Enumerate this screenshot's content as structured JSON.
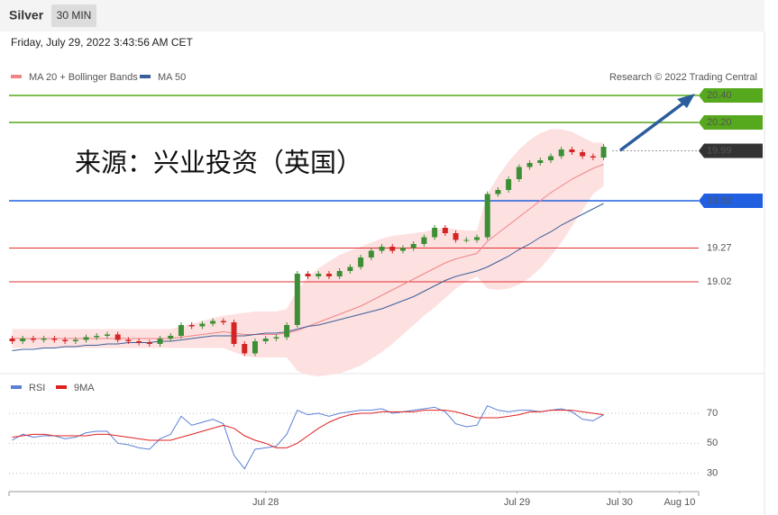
{
  "header": {
    "title": "Silver",
    "timeframe": "30 MIN",
    "timestamp": "Friday, July 29, 2022 3:43:56 AM CET"
  },
  "chart_data": [
    {
      "type": "candlestick",
      "source": "Research © 2022 Trading Central",
      "annotation": "来源：兴业投资（英国）",
      "up_color": "#3d8f35",
      "down_color": "#d42424",
      "xlim": [
        -0.3,
        65
      ],
      "ylim": [
        18.34,
        20.64
      ],
      "open": [
        18.6,
        18.58,
        18.6,
        18.59,
        18.6,
        18.59,
        18.58,
        18.59,
        18.61,
        18.62,
        18.63,
        18.59,
        18.58,
        18.57,
        18.56,
        18.6,
        18.62,
        18.7,
        18.69,
        18.71,
        18.73,
        18.72,
        18.56,
        18.49,
        18.58,
        18.6,
        18.61,
        18.7,
        19.08,
        19.06,
        19.08,
        19.06,
        19.1,
        19.13,
        19.2,
        19.25,
        19.28,
        19.25,
        19.27,
        19.3,
        19.35,
        19.42,
        19.38,
        19.33,
        19.33,
        19.35,
        19.67,
        19.7,
        19.78,
        19.87,
        19.9,
        19.92,
        19.95,
        20.0,
        19.98,
        19.95,
        19.94
      ],
      "high": [
        18.62,
        18.62,
        18.62,
        18.62,
        18.62,
        18.61,
        18.61,
        18.63,
        18.64,
        18.65,
        18.65,
        18.61,
        18.6,
        18.59,
        18.62,
        18.64,
        18.72,
        18.72,
        18.73,
        18.75,
        18.75,
        18.74,
        18.58,
        18.6,
        18.62,
        18.63,
        18.72,
        19.1,
        19.1,
        19.1,
        19.1,
        19.12,
        19.15,
        19.22,
        19.27,
        19.3,
        19.3,
        19.29,
        19.32,
        19.37,
        19.44,
        19.44,
        19.4,
        19.35,
        19.37,
        19.69,
        19.72,
        19.8,
        19.89,
        19.92,
        19.94,
        19.97,
        20.02,
        20.02,
        20.0,
        19.97,
        20.04
      ],
      "low": [
        18.56,
        18.56,
        18.57,
        18.57,
        18.57,
        18.56,
        18.56,
        18.57,
        18.59,
        18.6,
        18.57,
        18.56,
        18.55,
        18.54,
        18.54,
        18.58,
        18.6,
        18.67,
        18.67,
        18.69,
        18.7,
        18.54,
        18.47,
        18.47,
        18.56,
        18.58,
        18.59,
        18.68,
        19.04,
        19.04,
        19.04,
        19.04,
        19.08,
        19.11,
        19.18,
        19.23,
        19.23,
        19.23,
        19.25,
        19.28,
        19.33,
        19.36,
        19.31,
        19.31,
        19.31,
        19.33,
        19.65,
        19.68,
        19.76,
        19.85,
        19.88,
        19.9,
        19.93,
        19.96,
        19.93,
        19.92,
        19.92
      ],
      "close": [
        18.58,
        18.6,
        18.59,
        18.6,
        18.59,
        18.58,
        18.59,
        18.61,
        18.62,
        18.63,
        18.59,
        18.58,
        18.57,
        18.56,
        18.6,
        18.62,
        18.7,
        18.69,
        18.71,
        18.73,
        18.72,
        18.56,
        18.49,
        18.58,
        18.6,
        18.61,
        18.7,
        19.08,
        19.06,
        19.08,
        19.06,
        19.1,
        19.13,
        19.2,
        19.25,
        19.28,
        19.25,
        19.27,
        19.3,
        19.35,
        19.42,
        19.38,
        19.33,
        19.33,
        19.35,
        19.67,
        19.7,
        19.78,
        19.87,
        19.9,
        19.92,
        19.95,
        20.0,
        19.98,
        19.95,
        19.94,
        20.02
      ],
      "series": [
        {
          "name": "MA 20 + Bollinger Bands",
          "color": "#f08585",
          "band_color": "#fde0e0",
          "values": [
            18.6,
            18.6,
            18.6,
            18.6,
            18.6,
            18.6,
            18.6,
            18.6,
            18.6,
            18.6,
            18.6,
            18.6,
            18.6,
            18.6,
            18.6,
            18.6,
            18.61,
            18.62,
            18.63,
            18.64,
            18.65,
            18.64,
            18.63,
            18.63,
            18.63,
            18.63,
            18.64,
            18.66,
            18.69,
            18.72,
            18.75,
            18.78,
            18.81,
            18.84,
            18.88,
            18.92,
            18.96,
            19.0,
            19.04,
            19.08,
            19.12,
            19.16,
            19.19,
            19.21,
            19.23,
            19.32,
            19.38,
            19.44,
            19.5,
            19.56,
            19.62,
            19.68,
            19.73,
            19.78,
            19.82,
            19.86,
            19.89
          ],
          "upper": [
            18.67,
            18.67,
            18.67,
            18.67,
            18.67,
            18.67,
            18.67,
            18.67,
            18.67,
            18.67,
            18.67,
            18.67,
            18.67,
            18.67,
            18.67,
            18.67,
            18.69,
            18.71,
            18.73,
            18.75,
            18.77,
            18.78,
            18.79,
            18.8,
            18.8,
            18.8,
            18.82,
            18.96,
            19.05,
            19.12,
            19.17,
            19.22,
            19.25,
            19.28,
            19.31,
            19.34,
            19.36,
            19.37,
            19.38,
            19.39,
            19.41,
            19.42,
            19.41,
            19.4,
            19.4,
            19.67,
            19.8,
            19.91,
            20.0,
            20.07,
            20.12,
            20.15,
            20.15,
            20.13,
            20.09,
            20.05,
            20.05
          ],
          "lower": [
            18.53,
            18.53,
            18.53,
            18.53,
            18.53,
            18.53,
            18.53,
            18.53,
            18.53,
            18.53,
            18.53,
            18.53,
            18.53,
            18.53,
            18.53,
            18.53,
            18.53,
            18.53,
            18.53,
            18.53,
            18.53,
            18.5,
            18.47,
            18.46,
            18.46,
            18.46,
            18.46,
            18.36,
            18.33,
            18.32,
            18.33,
            18.34,
            18.37,
            18.4,
            18.45,
            18.5,
            18.56,
            18.63,
            18.7,
            18.77,
            18.83,
            18.9,
            18.97,
            19.02,
            19.06,
            18.97,
            18.96,
            18.97,
            19.0,
            19.05,
            19.12,
            19.21,
            19.31,
            19.43,
            19.55,
            19.67,
            19.73
          ]
        },
        {
          "name": "MA 50",
          "color": "#3b5f9a",
          "values": [
            18.51,
            18.52,
            18.52,
            18.53,
            18.53,
            18.54,
            18.54,
            18.55,
            18.55,
            18.56,
            18.56,
            18.57,
            18.57,
            18.57,
            18.58,
            18.58,
            18.59,
            18.6,
            18.61,
            18.62,
            18.62,
            18.62,
            18.62,
            18.63,
            18.64,
            18.64,
            18.65,
            18.67,
            18.69,
            18.7,
            18.72,
            18.74,
            18.76,
            18.78,
            18.8,
            18.82,
            18.85,
            18.88,
            18.91,
            18.95,
            18.99,
            19.03,
            19.06,
            19.08,
            19.1,
            19.13,
            19.17,
            19.21,
            19.26,
            19.3,
            19.35,
            19.39,
            19.44,
            19.48,
            19.52,
            19.56,
            19.6
          ]
        }
      ],
      "levels": [
        {
          "value": 20.4,
          "label": "20.40",
          "color": "#56a81c",
          "line": "solid",
          "badge": true
        },
        {
          "value": 20.2,
          "label": "20.20",
          "color": "#56a81c",
          "line": "solid",
          "badge": true
        },
        {
          "value": 19.99,
          "color": "#333333",
          "line": "dotted",
          "badge": true
        },
        {
          "value": 19.62,
          "color": "#1f5fe0",
          "line": "solid",
          "badge": true
        },
        {
          "value": 19.27,
          "color": "#e03030",
          "line": "solid",
          "badge": false
        },
        {
          "value": 19.02,
          "color": "#e03030",
          "line": "solid",
          "badge": false
        }
      ]
    },
    {
      "type": "line",
      "xlim": [
        -0.3,
        65
      ],
      "ylim": [
        21.4,
        81.4
      ],
      "yticks": [
        30,
        50,
        70
      ],
      "grid": true,
      "xticks": [
        {
          "value": 24,
          "label": "Jul 28"
        },
        {
          "value": 47.8,
          "label": "Jul 29"
        },
        {
          "value": 57.5,
          "label": "Jul 30"
        },
        {
          "value": 63.2,
          "label": "Aug 10"
        }
      ],
      "series": [
        {
          "name": "RSI",
          "color": "#5b7fd6",
          "values": [
            52,
            56,
            54,
            55,
            55,
            53,
            54,
            57,
            58,
            58,
            50,
            49,
            47,
            46,
            53,
            56,
            68,
            62,
            64,
            66,
            63,
            42,
            33,
            46,
            47,
            48,
            56,
            72,
            69,
            70,
            68,
            70,
            71,
            72,
            72,
            73,
            70,
            71,
            72,
            73,
            74,
            71,
            63,
            61,
            62,
            75,
            72,
            71,
            72,
            72,
            71,
            72,
            73,
            71,
            66,
            65,
            69
          ]
        },
        {
          "name": "9MA",
          "color": "#e02020",
          "values": [
            54,
            55,
            56,
            56,
            55,
            55,
            55,
            55,
            56,
            56,
            55,
            54,
            53,
            52,
            52,
            52,
            54,
            56,
            58,
            60,
            62,
            60,
            55,
            52,
            50,
            47,
            47,
            50,
            55,
            60,
            64,
            67,
            69,
            70,
            70,
            71,
            71,
            71,
            71,
            72,
            72,
            72,
            71,
            69,
            67,
            67,
            67,
            68,
            69,
            71,
            71,
            72,
            72,
            72,
            71,
            70,
            69
          ]
        }
      ]
    }
  ]
}
